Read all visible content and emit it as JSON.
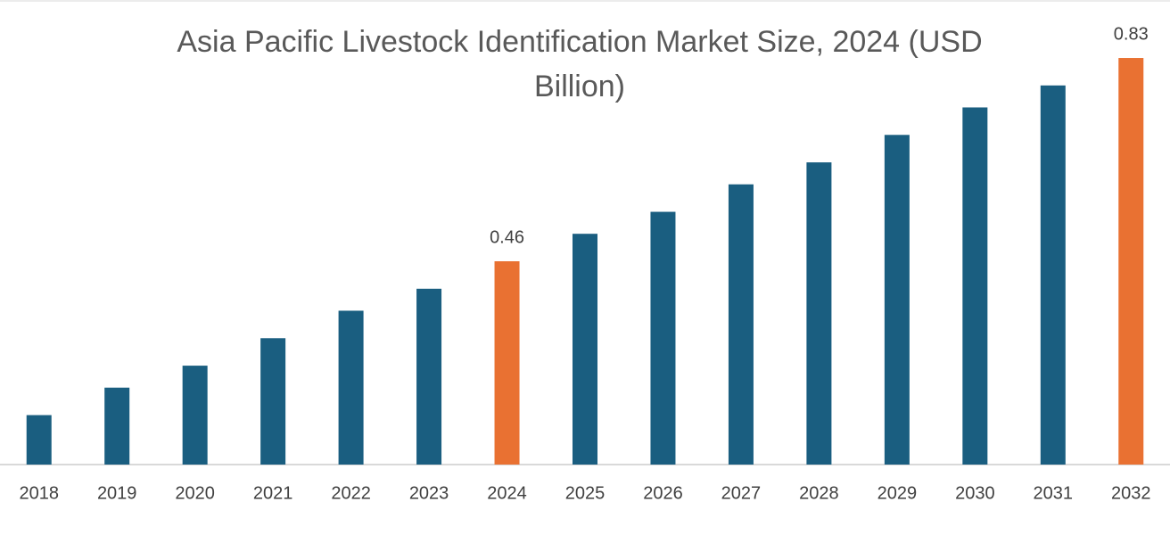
{
  "chart_data": {
    "type": "bar",
    "title": "Asia Pacific Livestock Identification Market Size, 2024 (USD Billion)",
    "categories": [
      "2018",
      "2019",
      "2020",
      "2021",
      "2022",
      "2023",
      "2024",
      "2025",
      "2026",
      "2027",
      "2028",
      "2029",
      "2030",
      "2031",
      "2032"
    ],
    "values": [
      0.18,
      0.23,
      0.27,
      0.32,
      0.37,
      0.41,
      0.46,
      0.51,
      0.55,
      0.6,
      0.64,
      0.69,
      0.74,
      0.78,
      0.83
    ],
    "value_labels": [
      null,
      null,
      null,
      null,
      null,
      null,
      "0.46",
      null,
      null,
      null,
      null,
      null,
      null,
      null,
      "0.83"
    ],
    "colors": [
      "#1a5e80",
      "#1a5e80",
      "#1a5e80",
      "#1a5e80",
      "#1a5e80",
      "#1a5e80",
      "#e97132",
      "#1a5e80",
      "#1a5e80",
      "#1a5e80",
      "#1a5e80",
      "#1a5e80",
      "#1a5e80",
      "#1a5e80",
      "#e97132"
    ],
    "ylim": [
      0.09,
      0.93
    ]
  }
}
